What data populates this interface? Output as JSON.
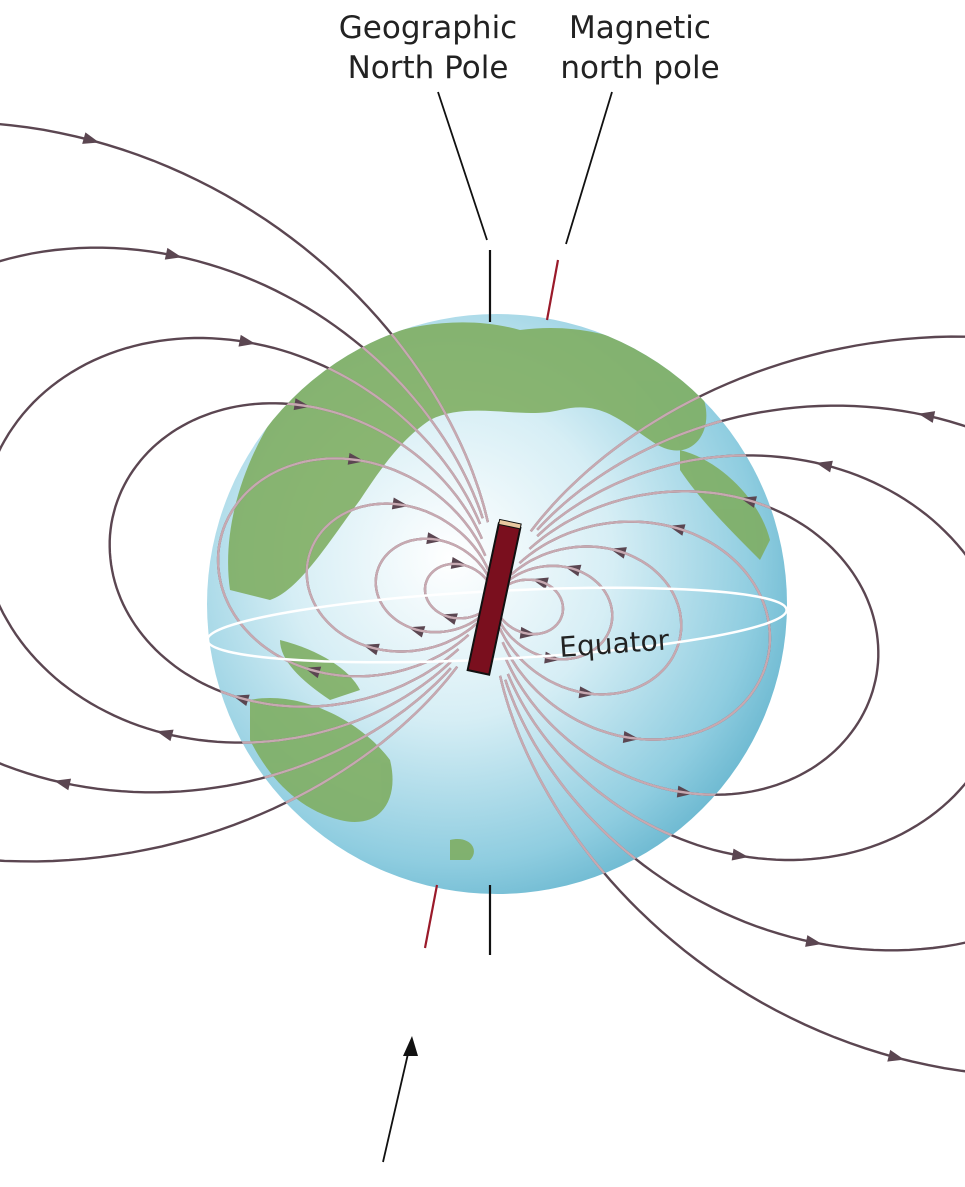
{
  "labels": [
    {
      "lines": [
        "Geographic",
        "North Pole"
      ]
    },
    {
      "lines": [
        "Magnetic",
        "north pole"
      ]
    }
  ],
  "equator": "Equator"
}
